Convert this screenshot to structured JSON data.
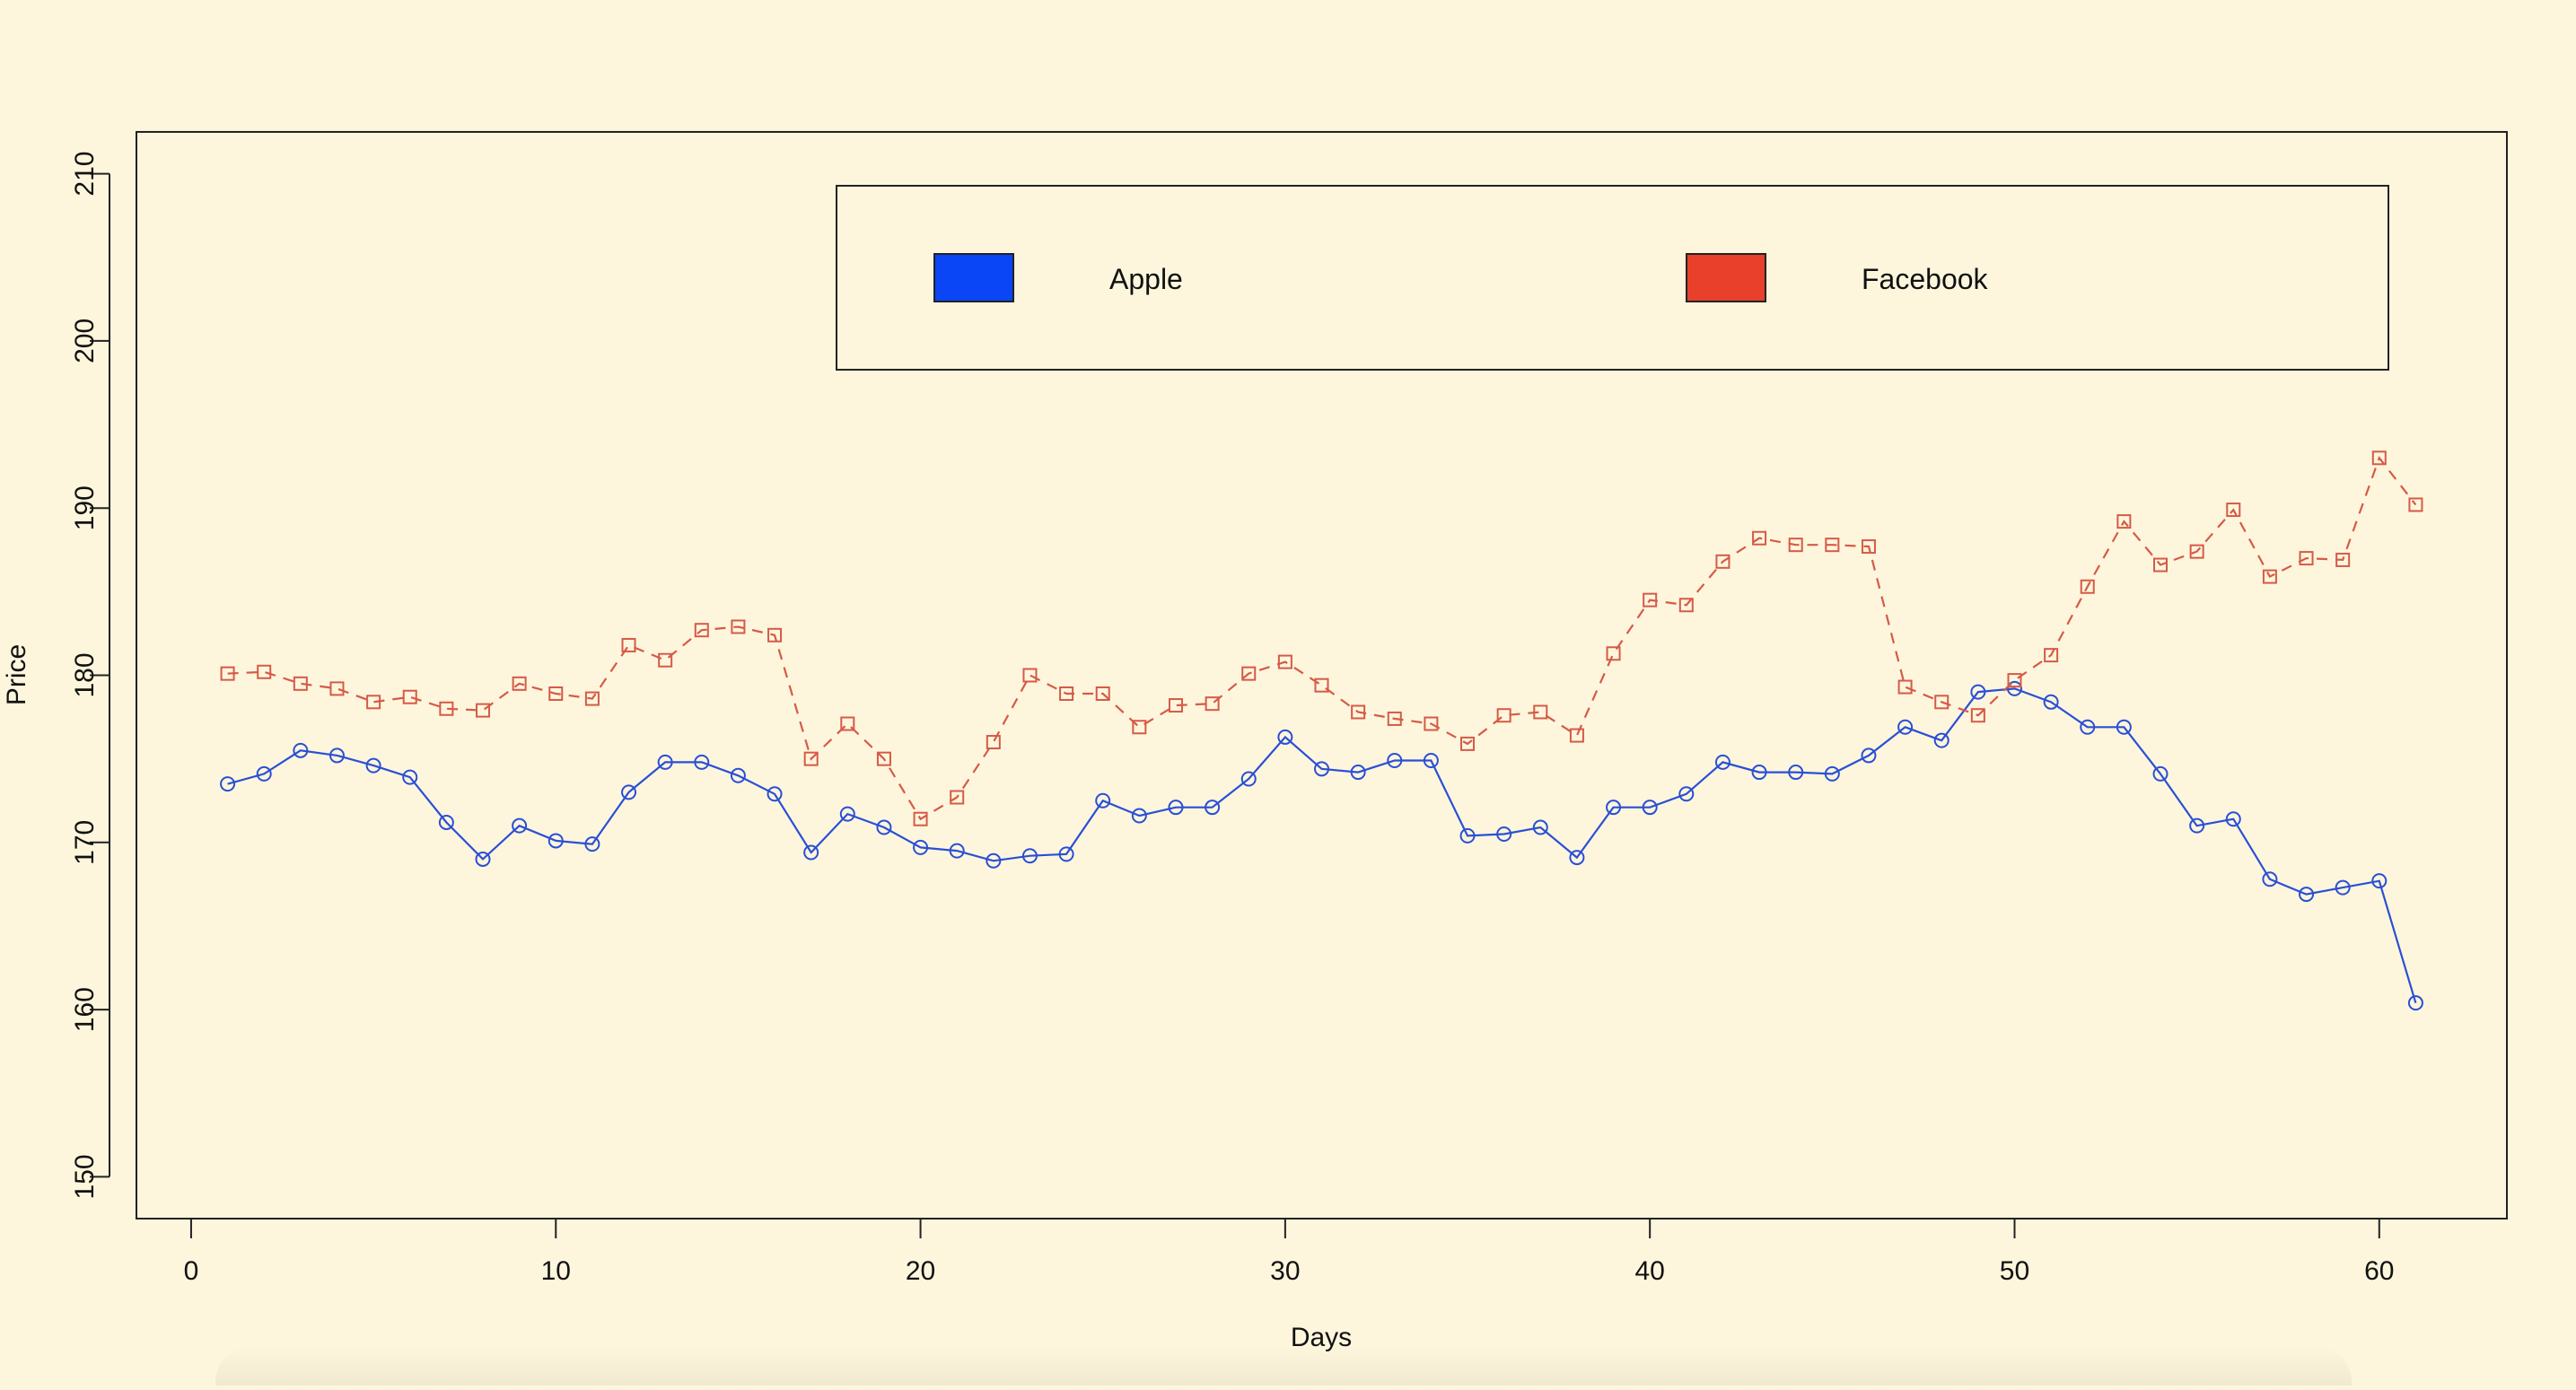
{
  "chart_data": {
    "type": "line",
    "xlabel": "Days",
    "ylabel": "Price",
    "xlim": [
      -1.5,
      63.5
    ],
    "ylim": [
      147.5,
      212.5
    ],
    "x_ticks": [
      0,
      10,
      20,
      30,
      40,
      50,
      60
    ],
    "y_ticks": [
      150,
      160,
      170,
      180,
      190,
      200,
      210
    ],
    "grid": false,
    "legend": {
      "placement": "top",
      "horizontal": true
    },
    "x": [
      1,
      2,
      3,
      4,
      5,
      6,
      7,
      8,
      9,
      10,
      11,
      12,
      13,
      14,
      15,
      16,
      17,
      18,
      19,
      20,
      21,
      22,
      23,
      24,
      25,
      26,
      27,
      28,
      29,
      30,
      31,
      32,
      33,
      34,
      35,
      36,
      37,
      38,
      39,
      40,
      41,
      42,
      43,
      44,
      45,
      46,
      47,
      48,
      49,
      50,
      51,
      52,
      53,
      54,
      55,
      56,
      57,
      58,
      59,
      60,
      61
    ],
    "series": [
      {
        "name": "Apple",
        "color": "#2a4fd6",
        "legend_color": "#0a46f5",
        "line_style": "solid",
        "marker": "circle",
        "values": [
          173.5,
          174.1,
          175.5,
          175.2,
          174.6,
          173.9,
          171.2,
          169.0,
          171.0,
          170.1,
          169.9,
          173.0,
          174.8,
          174.8,
          174.0,
          172.9,
          169.4,
          171.7,
          170.9,
          169.7,
          169.5,
          168.9,
          169.2,
          169.3,
          172.5,
          171.6,
          172.1,
          172.1,
          173.8,
          176.3,
          174.4,
          174.2,
          174.9,
          174.9,
          170.4,
          170.5,
          170.9,
          169.1,
          172.1,
          172.1,
          172.9,
          174.8,
          174.2,
          174.2,
          174.1,
          175.2,
          176.9,
          176.1,
          179.0,
          179.2,
          178.4,
          176.9,
          176.9,
          174.1,
          171.0,
          171.4,
          167.8,
          166.9,
          167.3,
          167.7,
          160.4
        ]
      },
      {
        "name": "Facebook",
        "color": "#d65a48",
        "legend_color": "#e8402a",
        "line_style": "dashed",
        "marker": "square",
        "values": [
          180.1,
          180.2,
          179.5,
          179.2,
          178.4,
          178.7,
          178.0,
          177.9,
          179.5,
          178.9,
          178.6,
          181.8,
          180.9,
          182.7,
          182.9,
          182.4,
          175.0,
          177.1,
          175.0,
          171.4,
          172.7,
          176.0,
          180.0,
          178.9,
          178.9,
          176.9,
          178.2,
          178.3,
          180.1,
          180.8,
          179.4,
          177.8,
          177.4,
          177.1,
          175.9,
          177.6,
          177.8,
          176.4,
          181.3,
          184.5,
          184.2,
          186.8,
          188.2,
          187.8,
          187.8,
          187.7,
          179.3,
          178.4,
          177.6,
          179.7,
          181.2,
          185.3,
          189.2,
          186.6,
          187.4,
          189.9,
          185.9,
          187.0,
          186.9,
          193.0,
          190.2
        ]
      }
    ]
  }
}
